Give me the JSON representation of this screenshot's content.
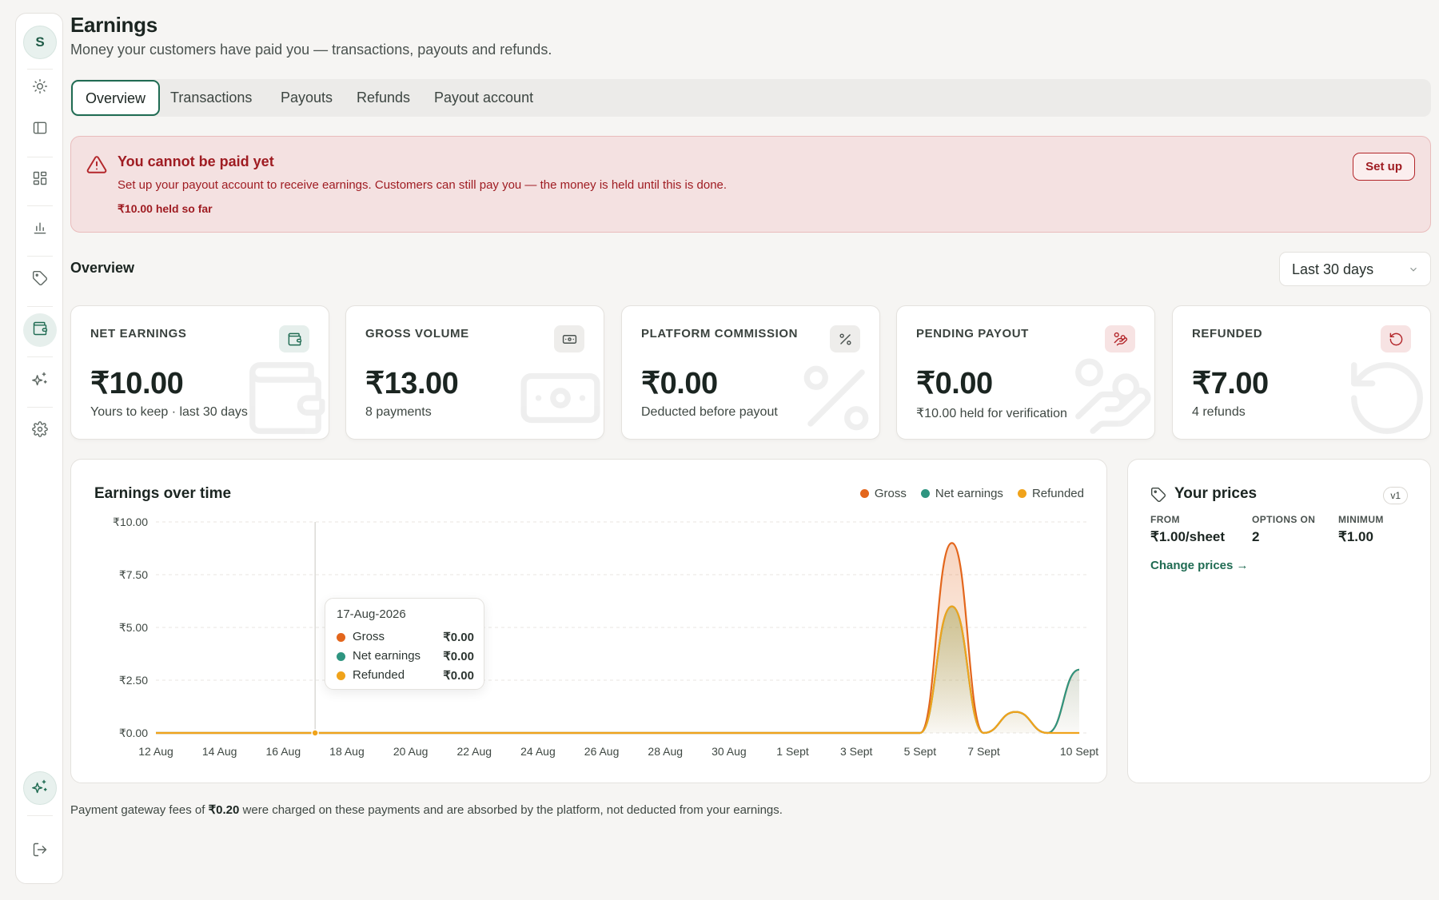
{
  "sidebar": {
    "avatar_initial": "S",
    "items": [
      {
        "name": "theme",
        "icon": "sun-icon"
      },
      {
        "name": "panel",
        "icon": "sidebar-panel-icon"
      },
      {
        "name": "dashboard",
        "icon": "grid-icon"
      },
      {
        "name": "analytics",
        "icon": "bar-chart-icon"
      },
      {
        "name": "prices",
        "icon": "tag-icon"
      },
      {
        "name": "earnings",
        "icon": "wallet-icon",
        "active": true
      },
      {
        "name": "ai",
        "icon": "sparkles-icon"
      },
      {
        "name": "settings",
        "icon": "gear-icon"
      }
    ]
  },
  "header": {
    "title": "Earnings",
    "subtitle": "Money your customers have paid you — transactions, payouts and refunds."
  },
  "tabs": [
    {
      "label": "Overview",
      "active": true
    },
    {
      "label": "Transactions"
    },
    {
      "label": "Payouts"
    },
    {
      "label": "Refunds"
    },
    {
      "label": "Payout account"
    }
  ],
  "alert": {
    "title": "You cannot be paid yet",
    "text": "Set up your payout account to receive earnings. Customers can still pay you — the money is held until this is done.",
    "held": "₹10.00 held so far",
    "button": "Set up"
  },
  "overview": {
    "title": "Overview",
    "range": "Last 30 days"
  },
  "kpis": [
    {
      "label": "NET EARNINGS",
      "value": "₹10.00",
      "sub": "Yours to keep · last 30 days",
      "icon": "wallet-icon",
      "accent": "#1f6b52"
    },
    {
      "label": "GROSS VOLUME",
      "value": "₹13.00",
      "sub": "8 payments",
      "icon": "banknote-icon",
      "accent": "#4a524f"
    },
    {
      "label": "PLATFORM COMMISSION",
      "value": "₹0.00",
      "sub": "Deducted before payout",
      "icon": "percent-icon",
      "accent": "#4a524f"
    },
    {
      "label": "PENDING PAYOUT",
      "value": "₹0.00",
      "sub": "₹10.00 held for verification",
      "icon": "hand-coins-icon",
      "accent": "#b3262a"
    },
    {
      "label": "REFUNDED",
      "value": "₹7.00",
      "sub": "4 refunds",
      "icon": "rotate-ccw-icon",
      "accent": "#b3262a"
    }
  ],
  "chart": {
    "title": "Earnings over time",
    "legend": [
      {
        "name": "Gross",
        "color": "#e3661c"
      },
      {
        "name": "Net earnings",
        "color": "#2f9580"
      },
      {
        "name": "Refunded",
        "color": "#f0a31b"
      }
    ],
    "tooltip": {
      "date": "17-Aug-2026",
      "rows": [
        {
          "name": "Gross",
          "value": "₹0.00",
          "color": "#e3661c"
        },
        {
          "name": "Net earnings",
          "value": "₹0.00",
          "color": "#2f9580"
        },
        {
          "name": "Refunded",
          "value": "₹0.00",
          "color": "#f0a31b"
        }
      ]
    }
  },
  "chart_data": {
    "type": "area",
    "title": "Earnings over time",
    "xlabel": "",
    "ylabel": "",
    "ylim": [
      0,
      10
    ],
    "yticks": [
      "₹0.00",
      "₹2.50",
      "₹5.00",
      "₹7.50",
      "₹10.00"
    ],
    "x_tick_labels": [
      "12 Aug",
      "14 Aug",
      "16 Aug",
      "18 Aug",
      "20 Aug",
      "22 Aug",
      "24 Aug",
      "26 Aug",
      "28 Aug",
      "30 Aug",
      "1 Sept",
      "3 Sept",
      "5 Sept",
      "7 Sept",
      "10 Sept"
    ],
    "categories": [
      "12 Aug",
      "13 Aug",
      "14 Aug",
      "15 Aug",
      "16 Aug",
      "17 Aug",
      "18 Aug",
      "19 Aug",
      "20 Aug",
      "21 Aug",
      "22 Aug",
      "23 Aug",
      "24 Aug",
      "25 Aug",
      "26 Aug",
      "27 Aug",
      "28 Aug",
      "29 Aug",
      "30 Aug",
      "31 Aug",
      "1 Sept",
      "2 Sept",
      "3 Sept",
      "4 Sept",
      "5 Sept",
      "6 Sept",
      "7 Sept",
      "8 Sept",
      "9 Sept",
      "10 Sept"
    ],
    "series": [
      {
        "name": "Gross",
        "color": "#e3661c",
        "values": [
          0,
          0,
          0,
          0,
          0,
          0,
          0,
          0,
          0,
          0,
          0,
          0,
          0,
          0,
          0,
          0,
          0,
          0,
          0,
          0,
          0,
          0,
          0,
          0,
          0,
          9,
          0,
          1,
          0,
          3
        ]
      },
      {
        "name": "Net earnings",
        "color": "#2f9580",
        "values": [
          0,
          0,
          0,
          0,
          0,
          0,
          0,
          0,
          0,
          0,
          0,
          0,
          0,
          0,
          0,
          0,
          0,
          0,
          0,
          0,
          0,
          0,
          0,
          0,
          0,
          6,
          0,
          1,
          0,
          3
        ]
      },
      {
        "name": "Refunded",
        "color": "#f0a31b",
        "values": [
          0,
          0,
          0,
          0,
          0,
          0,
          0,
          0,
          0,
          0,
          0,
          0,
          0,
          0,
          0,
          0,
          0,
          0,
          0,
          0,
          0,
          0,
          0,
          0,
          0,
          6,
          0,
          1,
          0,
          0
        ]
      }
    ],
    "grid": true,
    "legend_position": "top-right"
  },
  "prices": {
    "title": "Your prices",
    "badge": "v1",
    "from_label": "FROM",
    "from_value": "₹1.00/sheet",
    "options_label": "OPTIONS ON",
    "options_value": "2",
    "minimum_label": "MINIMUM",
    "minimum_value": "₹1.00",
    "link": "Change prices →"
  },
  "footnote": {
    "prefix": "Payment gateway fees of",
    "amount": "₹0.20",
    "suffix": "were charged on these payments and are absorbed by the platform, not deducted from your earnings."
  }
}
